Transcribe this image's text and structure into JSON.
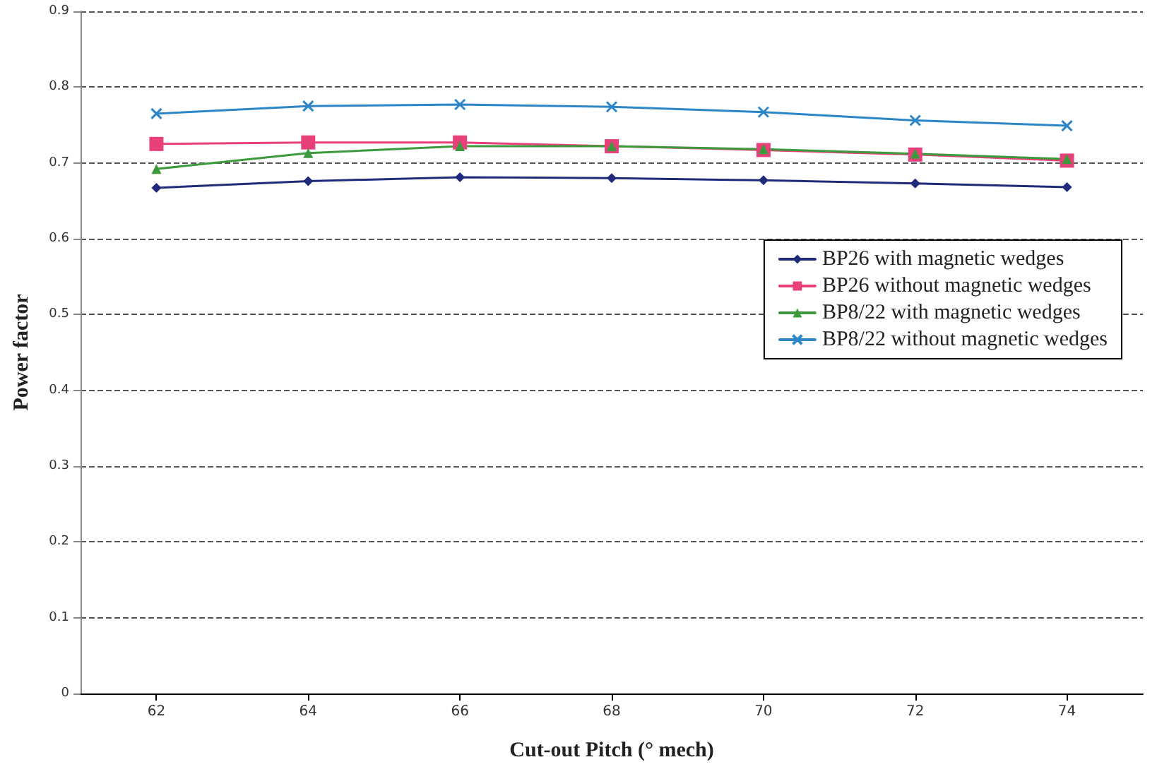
{
  "chart_data": {
    "type": "line",
    "xlabel": "Cut-out Pitch (° mech)",
    "ylabel": "Power factor",
    "categories": [
      "62",
      "64",
      "66",
      "68",
      "70",
      "72",
      "74"
    ],
    "series": [
      {
        "name": "BP26 with magnetic wedges",
        "color": "#1f2a7a",
        "marker": "diamond",
        "values": [
          0.667,
          0.676,
          0.681,
          0.68,
          0.677,
          0.673,
          0.668
        ]
      },
      {
        "name": "BP26 without magnetic wedges",
        "color": "#e8407a",
        "marker": "square",
        "values": [
          0.725,
          0.727,
          0.727,
          0.722,
          0.717,
          0.711,
          0.703
        ]
      },
      {
        "name": "BP8/22 with magnetic wedges",
        "color": "#3c9a3c",
        "marker": "triangle",
        "values": [
          0.692,
          0.713,
          0.722,
          0.722,
          0.718,
          0.712,
          0.705
        ]
      },
      {
        "name": "BP8/22 without magnetic wedges",
        "color": "#2c86c8",
        "marker": "cross",
        "values": [
          0.765,
          0.775,
          0.777,
          0.774,
          0.767,
          0.756,
          0.749
        ]
      }
    ],
    "ylim": [
      0,
      0.9
    ],
    "yticks": [
      0,
      0.1,
      0.2,
      0.3,
      0.4,
      0.5,
      0.6,
      0.7,
      0.8,
      0.9
    ],
    "grid": "y",
    "legend": "right"
  }
}
